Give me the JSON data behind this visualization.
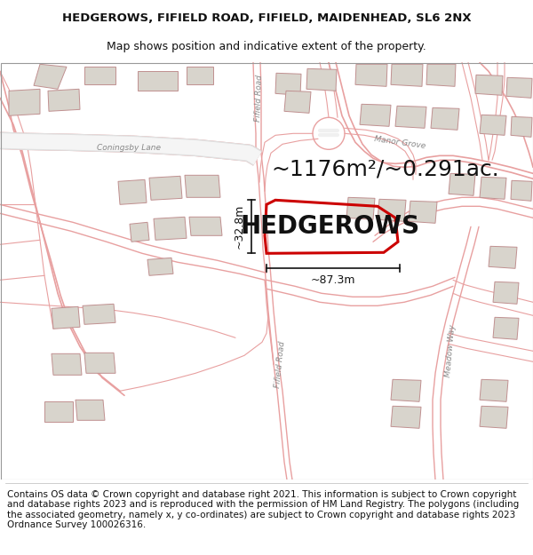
{
  "title_line1": "HEDGEROWS, FIFIELD ROAD, FIFIELD, MAIDENHEAD, SL6 2NX",
  "title_line2": "Map shows position and indicative extent of the property.",
  "property_label": "HEDGEROWS",
  "area_text": "~1176m²/~0.291ac.",
  "dim1_text": "~32.8m",
  "dim2_text": "~87.3m",
  "road_label1": "Coningsby Lane",
  "road_label2": "Manor Grove",
  "road_label3": "Fifield Road",
  "road_label4": "Fifield Road",
  "road_label5": "Meadow Way",
  "footer_text": "Contains OS data © Crown copyright and database right 2021. This information is subject to Crown copyright and database rights 2023 and is reproduced with the permission of HM Land Registry. The polygons (including the associated geometry, namely x, y co-ordinates) are subject to Crown copyright and database rights 2023 Ordnance Survey 100026316.",
  "map_bg": "#ffffff",
  "road_line_color": "#e8a0a0",
  "road_fill_color": "#f0f0f0",
  "property_fill": "none",
  "property_edge": "#cc0000",
  "building_fill": "#d8d4cc",
  "building_edge": "#c09090",
  "text_color": "#111111",
  "dim_line_color": "#111111",
  "road_label_color": "#888888",
  "title_fontsize": 9.5,
  "subtitle_fontsize": 9,
  "area_fontsize": 18,
  "prop_label_fontsize": 20,
  "footer_fontsize": 7.5,
  "road_fontsize": 6.5,
  "dim_fontsize": 9
}
